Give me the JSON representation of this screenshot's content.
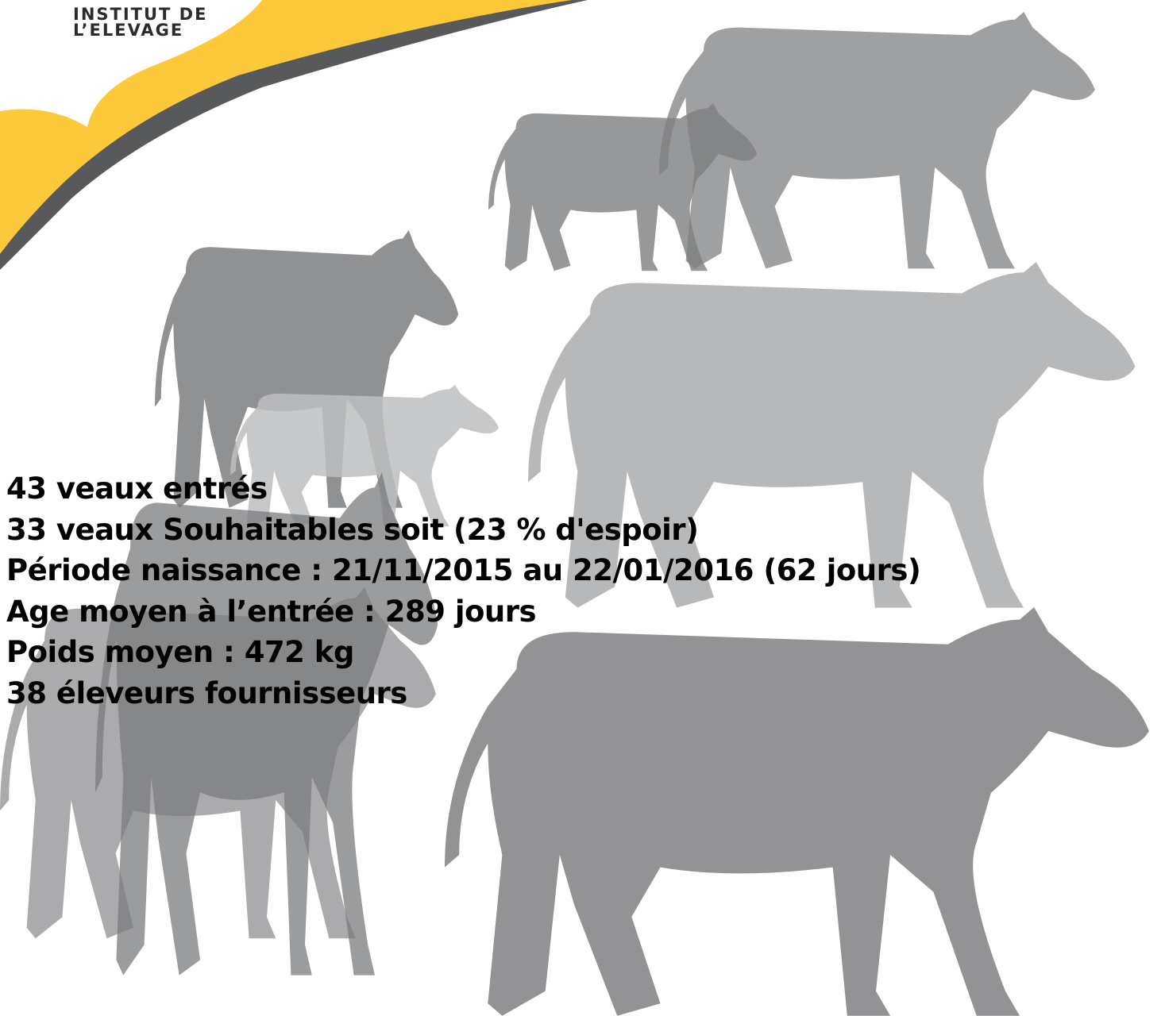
{
  "logo": {
    "line1": "INSTITUT DE",
    "line2": "L’ELEVAGE"
  },
  "facts": [
    "43 veaux entrés",
    "33 veaux Souhaitables soit (23 % d'espoir)",
    "Période naissance : 21/11/2015 au 22/01/2016 (62 jours)",
    "Age moyen à l’entrée : 289 jours",
    "Poids moyen : 472 kg",
    "38 éleveurs fournisseurs"
  ]
}
